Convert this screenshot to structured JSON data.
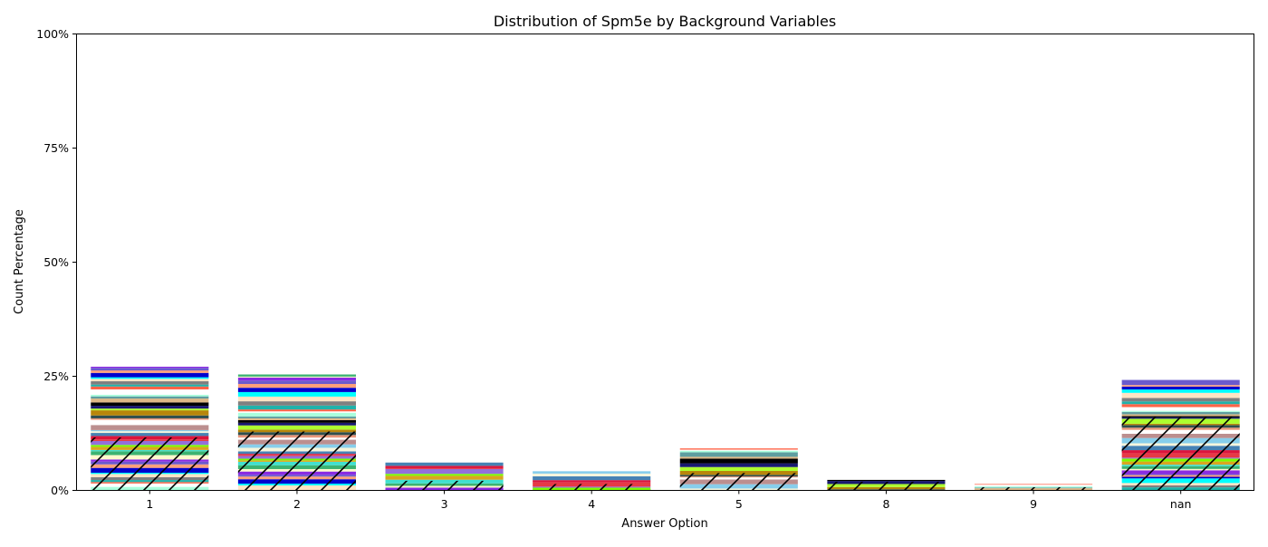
{
  "chart_data": {
    "type": "bar",
    "stacked": true,
    "title": "Distribution of Spm5e by Background Variables",
    "xlabel": "Answer Option",
    "ylabel": "Count Percentage",
    "categories": [
      "1",
      "2",
      "3",
      "4",
      "5",
      "8",
      "9",
      "nan"
    ],
    "totals_percent": [
      27.0,
      25.3,
      6.0,
      4.1,
      9.1,
      2.2,
      1.3,
      24.1
    ],
    "ylim": [
      0,
      100
    ],
    "yticks": [
      0,
      25,
      50,
      75,
      100
    ],
    "ytick_labels": [
      "0%",
      "25%",
      "50%",
      "75%",
      "100%"
    ],
    "grid": false,
    "legend": "none",
    "hatched_lower_share_percent": [
      11.5,
      12.8,
      2.0,
      1.3,
      3.7,
      1.8,
      0.6,
      16.0
    ],
    "segment_colors": [
      "#aaffdd",
      "#ffffff",
      "#daa520",
      "#ffe4c4",
      "#191970",
      "#4682b4",
      "#8a2be2",
      "#ffffff",
      "#e9967a",
      "#7cfc00",
      "#00ffff",
      "#000000",
      "#f5f5dc",
      "#fffacd",
      "#ff6347",
      "#2f4f4f",
      "#9370db",
      "#0000cd",
      "#deb887",
      "#87ceeb",
      "#3cb371",
      "#20b2aa",
      "#b8860b",
      "#e63946",
      "#ffa07a",
      "#5f9ea0",
      "#bc8f8f",
      "#40e0d0",
      "#808080",
      "#adff2f",
      "#dc143c",
      "#6a5acd"
    ]
  }
}
